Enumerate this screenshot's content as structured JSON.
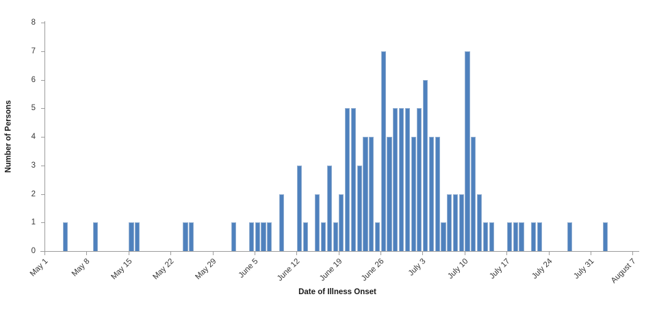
{
  "chart_data": {
    "type": "bar",
    "title": "",
    "xlabel": "Date of Illness Onset",
    "ylabel": "Number of Persons",
    "ylim": [
      0,
      8
    ],
    "y_ticks": [
      0,
      1,
      2,
      3,
      4,
      5,
      6,
      7,
      8
    ],
    "x_tick_labels": [
      "May 1",
      "May 8",
      "May 15",
      "May 22",
      "May 29",
      "June 5",
      "June 12",
      "June 19",
      "June 26",
      "July 3",
      "July 10",
      "July 17",
      "July 24",
      "July 31",
      "August 7"
    ],
    "grid": false,
    "legend": false,
    "bar_color": "#4f81bd",
    "bar_edge_color": "#92afd2",
    "points": [
      {
        "date": "May 4",
        "count": 1
      },
      {
        "date": "May 9",
        "count": 1
      },
      {
        "date": "May 15",
        "count": 1
      },
      {
        "date": "May 16",
        "count": 1
      },
      {
        "date": "May 24",
        "count": 1
      },
      {
        "date": "May 25",
        "count": 1
      },
      {
        "date": "June 1",
        "count": 1
      },
      {
        "date": "June 4",
        "count": 1
      },
      {
        "date": "June 5",
        "count": 1
      },
      {
        "date": "June 6",
        "count": 1
      },
      {
        "date": "June 7",
        "count": 1
      },
      {
        "date": "June 9",
        "count": 2
      },
      {
        "date": "June 12",
        "count": 3
      },
      {
        "date": "June 13",
        "count": 1
      },
      {
        "date": "June 15",
        "count": 2
      },
      {
        "date": "June 16",
        "count": 1
      },
      {
        "date": "June 17",
        "count": 3
      },
      {
        "date": "June 18",
        "count": 1
      },
      {
        "date": "June 19",
        "count": 2
      },
      {
        "date": "June 20",
        "count": 5
      },
      {
        "date": "June 21",
        "count": 5
      },
      {
        "date": "June 22",
        "count": 3
      },
      {
        "date": "June 23",
        "count": 4
      },
      {
        "date": "June 24",
        "count": 4
      },
      {
        "date": "June 25",
        "count": 1
      },
      {
        "date": "June 26",
        "count": 7
      },
      {
        "date": "June 27",
        "count": 4
      },
      {
        "date": "June 28",
        "count": 5
      },
      {
        "date": "June 29",
        "count": 5
      },
      {
        "date": "June 30",
        "count": 5
      },
      {
        "date": "July 1",
        "count": 4
      },
      {
        "date": "July 2",
        "count": 5
      },
      {
        "date": "July 3",
        "count": 6
      },
      {
        "date": "July 4",
        "count": 4
      },
      {
        "date": "July 5",
        "count": 4
      },
      {
        "date": "July 6",
        "count": 1
      },
      {
        "date": "July 7",
        "count": 2
      },
      {
        "date": "July 8",
        "count": 2
      },
      {
        "date": "July 9",
        "count": 2
      },
      {
        "date": "July 10",
        "count": 7
      },
      {
        "date": "July 11",
        "count": 4
      },
      {
        "date": "July 12",
        "count": 2
      },
      {
        "date": "July 13",
        "count": 1
      },
      {
        "date": "July 14",
        "count": 1
      },
      {
        "date": "July 17",
        "count": 1
      },
      {
        "date": "July 18",
        "count": 1
      },
      {
        "date": "July 19",
        "count": 1
      },
      {
        "date": "July 21",
        "count": 1
      },
      {
        "date": "July 22",
        "count": 1
      },
      {
        "date": "July 27",
        "count": 1
      },
      {
        "date": "August 2",
        "count": 1
      }
    ]
  }
}
